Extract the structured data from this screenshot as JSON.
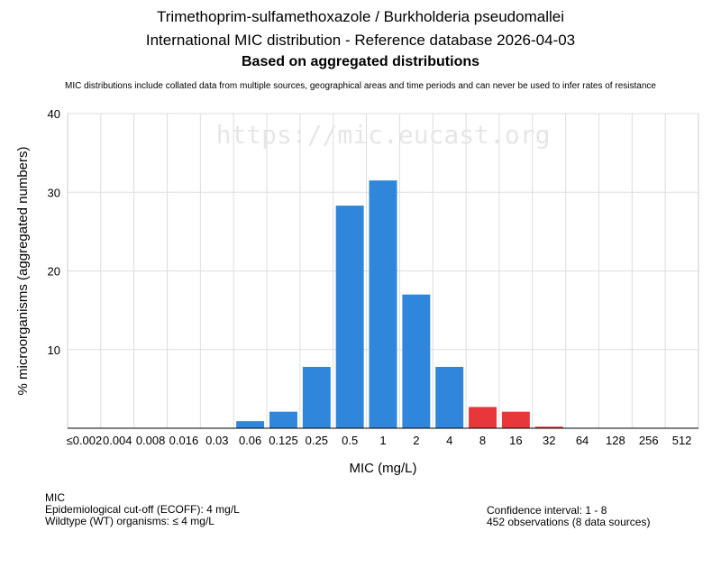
{
  "header": {
    "title_line1": "Trimethoprim-sulfamethoxazole / Burkholderia pseudomallei",
    "title_line2": "International MIC distribution - Reference database 2026-04-03",
    "title_line3": "Based on aggregated distributions",
    "subtitle": "MIC distributions include collated data from multiple sources, geographical areas and time periods and can never be used to infer rates of resistance"
  },
  "chart_data": {
    "type": "bar",
    "watermark": "https://mic.eucast.org",
    "xlabel": "MIC (mg/L)",
    "ylabel": "% microorganisms (aggregated numbers)",
    "ylim": [
      0,
      40
    ],
    "yticks": [
      10,
      20,
      30,
      40
    ],
    "grid": true,
    "categories": [
      "≤0.002",
      "0.004",
      "0.008",
      "0.016",
      "0.03",
      "0.06",
      "0.125",
      "0.25",
      "0.5",
      "1",
      "2",
      "4",
      "8",
      "16",
      "32",
      "64",
      "128",
      "256",
      "512"
    ],
    "values": [
      0,
      0,
      0,
      0,
      0,
      0.9,
      2.1,
      7.8,
      28.3,
      31.5,
      17.0,
      7.8,
      2.7,
      2.1,
      0.2,
      0,
      0,
      0,
      0
    ],
    "colors": {
      "wildtype": "#2f86db",
      "non_wildtype": "#e8373a"
    },
    "non_wildtype_from_index": 12
  },
  "footer": {
    "mic_label": "MIC",
    "ecoff": "Epidemiological cut-off (ECOFF): 4 mg/L",
    "wildtype": "Wildtype (WT) organisms: ≤ 4 mg/L",
    "confidence_interval": "Confidence interval: 1 - 8",
    "observations": "452 observations (8 data sources)"
  }
}
